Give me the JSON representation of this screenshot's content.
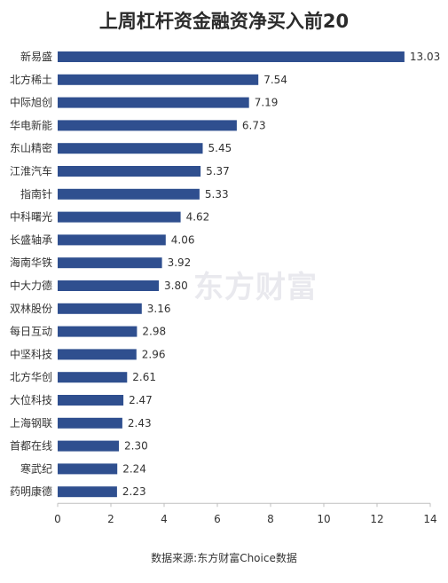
{
  "chart_data": {
    "type": "bar",
    "orientation": "horizontal",
    "title": "上周杠杆资金融资净买入前20",
    "categories": [
      "新易盛",
      "北方稀土",
      "中际旭创",
      "华电新能",
      "东山精密",
      "江淮汽车",
      "指南针",
      "中科曙光",
      "长盛轴承",
      "海南华铁",
      "中大力德",
      "双林股份",
      "每日互动",
      "中坚科技",
      "北方华创",
      "大位科技",
      "上海钢联",
      "首都在线",
      "寒武纪",
      "药明康德"
    ],
    "values": [
      13.03,
      7.54,
      7.19,
      6.73,
      5.45,
      5.37,
      5.33,
      4.62,
      4.06,
      3.92,
      3.8,
      3.16,
      2.98,
      2.96,
      2.61,
      2.47,
      2.43,
      2.3,
      2.24,
      2.23
    ],
    "value_labels": [
      "13.03",
      "7.54",
      "7.19",
      "6.73",
      "5.45",
      "5.37",
      "5.33",
      "4.62",
      "4.06",
      "3.92",
      "3.80",
      "3.16",
      "2.98",
      "2.96",
      "2.61",
      "2.47",
      "2.43",
      "2.30",
      "2.24",
      "2.23"
    ],
    "xlim": [
      0,
      14
    ],
    "xticks": [
      "0",
      "2",
      "4",
      "6",
      "8",
      "10",
      "12",
      "14"
    ],
    "grid": false,
    "bar_color": "#2f4f8f",
    "source": "数据来源:东方财富Choice数据",
    "watermark": "东方财富"
  }
}
